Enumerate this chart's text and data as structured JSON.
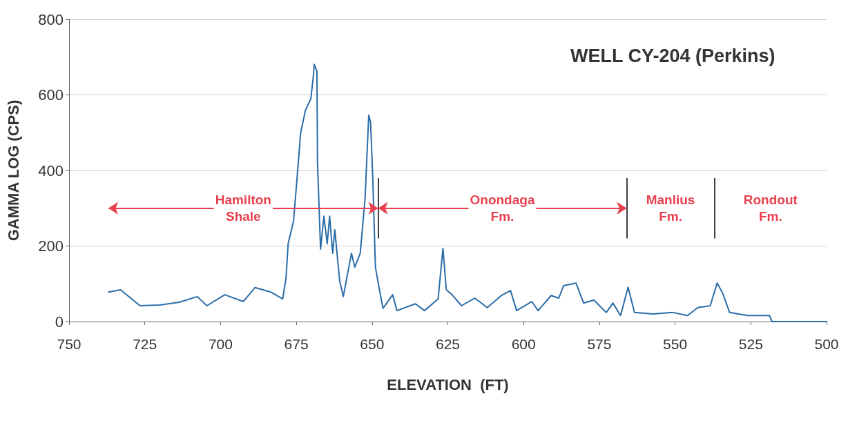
{
  "chart_data": {
    "type": "line",
    "title": "WELL CY-204 (Perkins)",
    "xlabel": "ELEVATION  (FT)",
    "ylabel": "GAMMA LOG (CPS)",
    "xlim": [
      750,
      500
    ],
    "xticks": [
      750,
      725,
      700,
      675,
      650,
      625,
      600,
      575,
      550,
      525,
      500
    ],
    "ylim": [
      0,
      800
    ],
    "yticks": [
      0,
      200,
      400,
      600,
      800
    ],
    "grid": "y",
    "marker": "none",
    "line_style": "solid",
    "x": [
      737,
      733,
      726.6,
      720,
      713.6,
      707.7,
      704.5,
      698.6,
      692.5,
      688.6,
      683.4,
      679.5,
      678.4,
      677.7,
      675.9,
      674.3,
      673.6,
      672,
      670.2,
      669.3,
      669.1,
      668.2,
      668,
      667,
      665.9,
      664.8,
      664,
      663,
      662.3,
      660.7,
      659.5,
      656.8,
      655.7,
      653.9,
      652.3,
      651.1,
      650.5,
      649.8,
      648.9,
      647.7,
      646.4,
      643.2,
      641.8,
      635.7,
      632.7,
      628.2,
      626.6,
      625.5,
      623.6,
      620.5,
      616.1,
      612,
      607.3,
      604.3,
      602.3,
      597.3,
      595.2,
      590.9,
      588.4,
      586.8,
      582.7,
      580.2,
      576.8,
      572.7,
      570.5,
      568,
      565.5,
      563.4,
      557.3,
      550.7,
      545.9,
      542.5,
      538.4,
      536.1,
      534.3,
      532,
      526.1,
      518.9,
      518,
      500
    ],
    "series": [
      {
        "color": "#2a6ca8",
        "values": [
          78,
          84,
          42,
          44,
          51,
          66,
          42,
          71,
          53,
          90,
          78,
          60,
          115,
          206,
          267,
          425,
          498,
          559,
          590,
          656,
          681,
          663,
          418,
          192,
          279,
          206,
          279,
          181,
          243,
          108,
          66,
          181,
          144,
          181,
          327,
          546,
          528,
          389,
          144,
          90,
          35,
          71,
          29,
          47,
          29,
          60,
          194,
          84,
          71,
          42,
          62,
          37,
          69,
          82,
          29,
          53,
          29,
          69,
          62,
          95,
          102,
          49,
          57,
          24,
          49,
          16,
          91,
          24,
          20,
          24,
          16,
          37,
          42,
          102,
          75,
          24,
          16,
          16,
          0,
          0
        ]
      }
    ],
    "ref_lines": [
      {
        "axis": "x",
        "value": 648,
        "color": "#404040"
      },
      {
        "axis": "x",
        "value": 566,
        "color": "#404040"
      },
      {
        "axis": "x",
        "value": 537,
        "color": "#404040"
      }
    ],
    "annotations": [
      "Hamilton\nShale",
      "Onondaga\nFm.",
      "Manlius\nFm.",
      "Rondout\nFm."
    ]
  }
}
